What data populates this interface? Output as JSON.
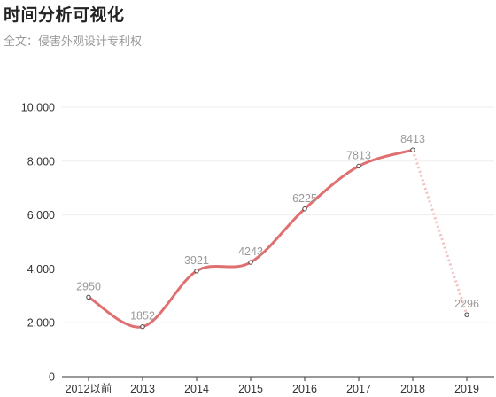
{
  "header": {
    "title": "时间分析可视化",
    "subtitle": "全文：侵害外观设计专利权"
  },
  "chart_data": {
    "type": "line",
    "title": "时间分析可视化",
    "subtitle": "全文：侵害外观设计专利权",
    "xlabel": "",
    "ylabel": "",
    "categories": [
      "2012以前",
      "2013",
      "2014",
      "2015",
      "2016",
      "2017",
      "2018",
      "2019"
    ],
    "series": [
      {
        "values": [
          2950,
          1852,
          3921,
          4243,
          6225,
          7813,
          8413,
          2296
        ],
        "data_labels": [
          "2950",
          "1852",
          "3921",
          "4243",
          "6225",
          "7813",
          "8413",
          "2296"
        ],
        "dashed_from_index": 6
      }
    ],
    "ylim": [
      0,
      10000
    ],
    "yticks": [
      0,
      2000,
      4000,
      6000,
      8000,
      10000
    ],
    "ytick_labels": [
      "0",
      "2,000",
      "4,000",
      "6,000",
      "8,000",
      "10,000"
    ],
    "grid": true,
    "legend": "none",
    "colors": {
      "line": "#e07070",
      "line_dashed": "#f2c0c0",
      "gridline": "#eeeeee",
      "axis": "#333333"
    }
  }
}
